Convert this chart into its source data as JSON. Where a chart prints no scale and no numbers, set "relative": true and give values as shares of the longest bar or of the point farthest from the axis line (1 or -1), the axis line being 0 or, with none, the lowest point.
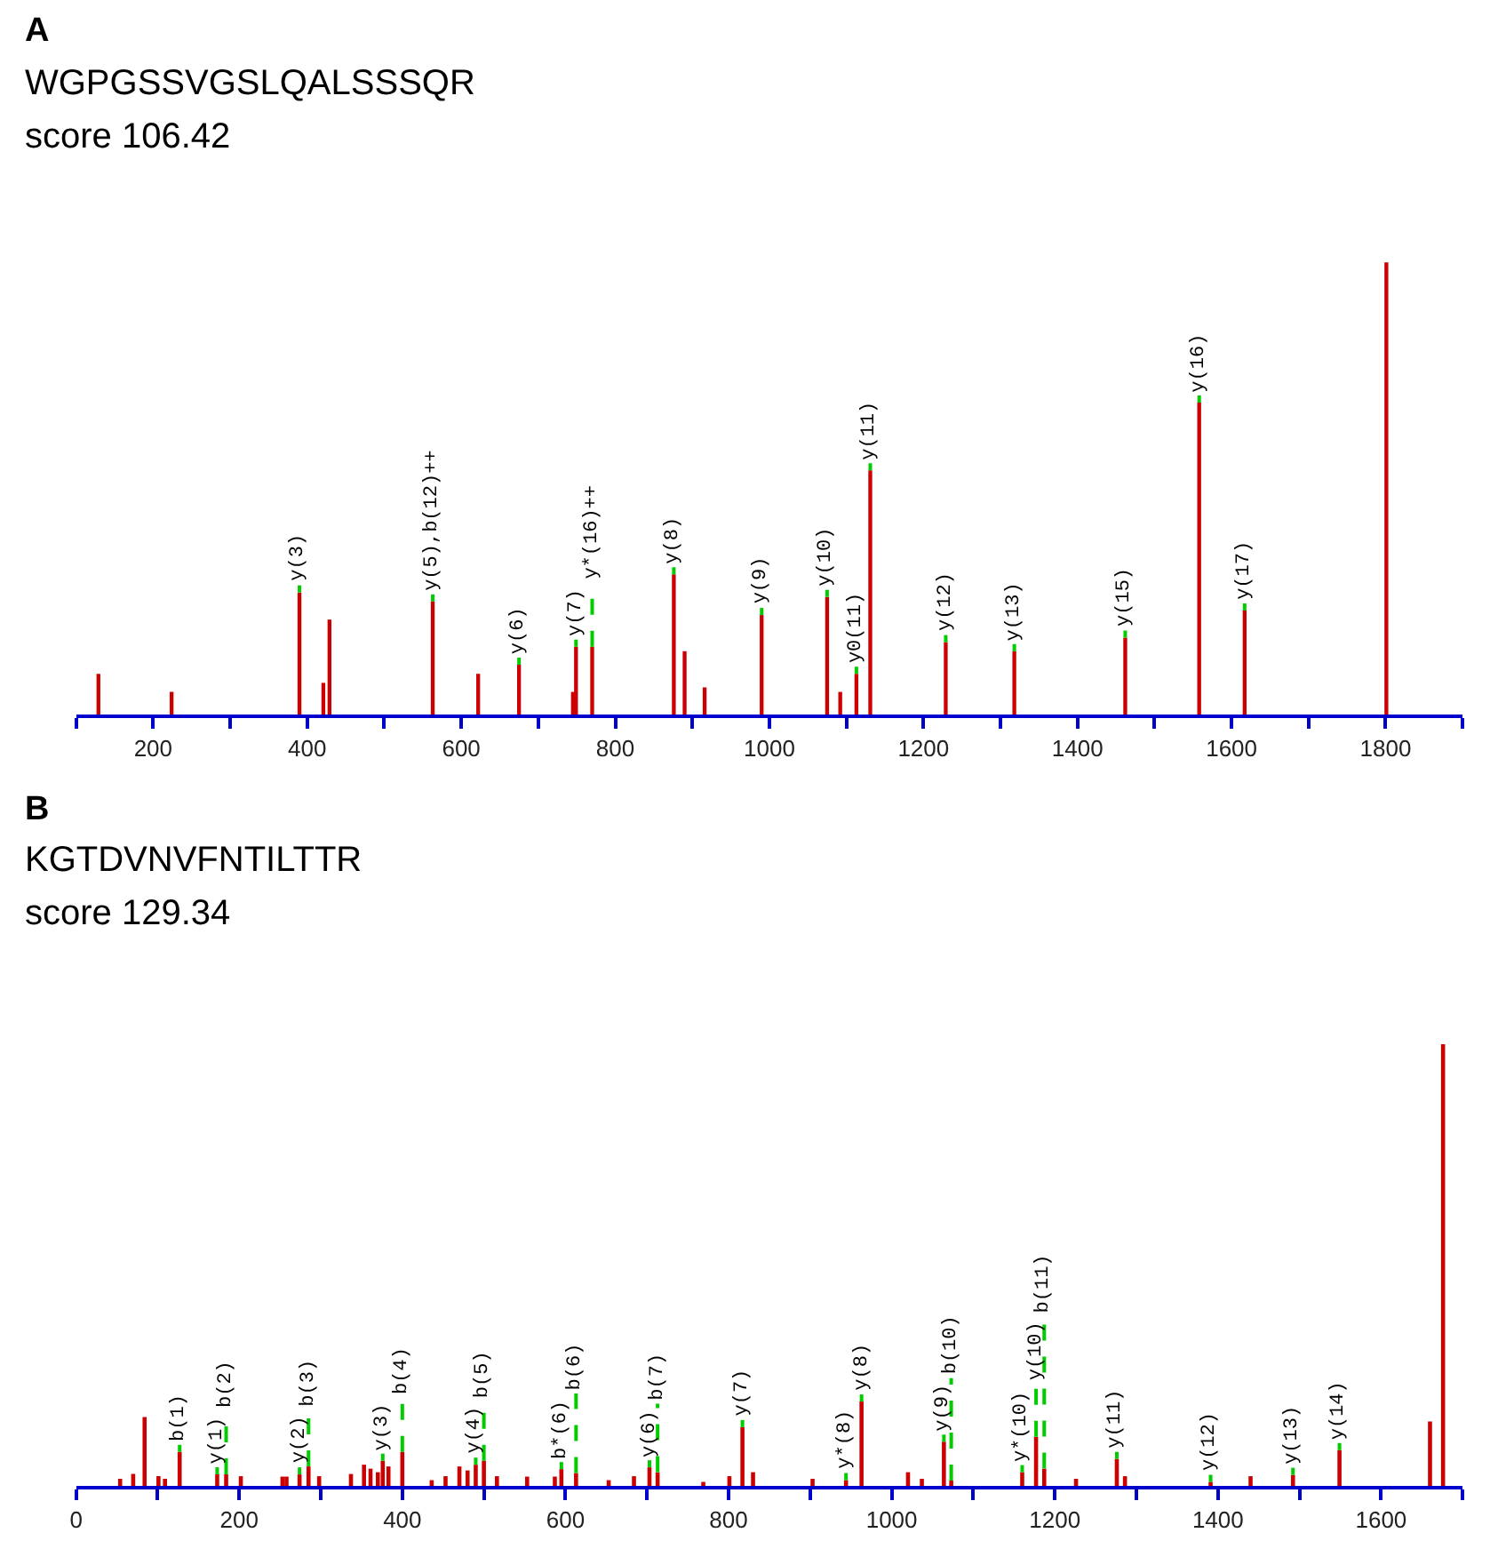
{
  "chart_data": [
    {
      "type": "bar",
      "title": "A",
      "subtitle": "WGPGSSVGSLQALSSSQR",
      "relative": true,
      "color": "#cc0000",
      "tick_labels": "x",
      "xlim": [
        100,
        1900
      ],
      "xticks": [
        {
          "value": 100,
          "label": null
        },
        200,
        {
          "value": 300,
          "label": null
        },
        400,
        {
          "value": 500,
          "label": null
        },
        600,
        {
          "value": 700,
          "label": null
        },
        800,
        {
          "value": 900,
          "label": null
        },
        1000,
        {
          "value": 1100,
          "label": null
        },
        1200,
        {
          "value": 1300,
          "label": null
        },
        1400,
        {
          "value": 1500,
          "label": null
        },
        1600,
        {
          "value": 1700,
          "label": null
        },
        1800,
        {
          "value": 1900,
          "label": null
        }
      ],
      "x": [
        129,
        224,
        390,
        421,
        429,
        563,
        622,
        675,
        745,
        749,
        770,
        876,
        890,
        916,
        990,
        1075,
        1092,
        1113,
        1131,
        1229,
        1318,
        1462,
        1558,
        1617,
        1801
      ],
      "values": [
        0.09,
        0.05,
        0.27,
        0.07,
        0.21,
        0.25,
        0.09,
        0.11,
        0.05,
        0.15,
        0.15,
        0.31,
        0.14,
        0.06,
        0.22,
        0.26,
        0.05,
        0.09,
        0.54,
        0.16,
        0.14,
        0.17,
        0.69,
        0.23,
        1.0
      ],
      "annotations": [
        "score 106.42",
        {
          "text": "y(3)",
          "x": 390,
          "y": 0.27
        },
        {
          "text": "y(5),b(12)++",
          "x": 563,
          "y": 0.25
        },
        {
          "text": "y(6)",
          "x": 675,
          "y": 0.11
        },
        {
          "text": "y(7)",
          "x": 749,
          "y": 0.15
        },
        {
          "text": "y*(16)++",
          "x": 770,
          "y": 0.15
        },
        {
          "text": "y(8)",
          "x": 876,
          "y": 0.31
        },
        {
          "text": "y(9)",
          "x": 990,
          "y": 0.22
        },
        {
          "text": "y(10)",
          "x": 1075,
          "y": 0.26
        },
        {
          "text": "y0(11)",
          "x": 1113,
          "y": 0.09
        },
        {
          "text": "y(11)",
          "x": 1131,
          "y": 0.54
        },
        {
          "text": "y(12)",
          "x": 1229,
          "y": 0.16
        },
        {
          "text": "y(13)",
          "x": 1318,
          "y": 0.14
        },
        {
          "text": "y(15)",
          "x": 1462,
          "y": 0.17
        },
        {
          "text": "y(16)",
          "x": 1558,
          "y": 0.69
        },
        {
          "text": "y(17)",
          "x": 1617,
          "y": 0.23
        }
      ]
    },
    {
      "type": "bar",
      "title": "B",
      "subtitle": "KGTDVNVFNTILTTR",
      "relative": true,
      "color": "#cc0000",
      "tick_labels": "x",
      "xlim": [
        0,
        1700
      ],
      "xticks": [
        0,
        {
          "value": 100,
          "label": null
        },
        200,
        {
          "value": 300,
          "label": null
        },
        400,
        {
          "value": 500,
          "label": null
        },
        600,
        {
          "value": 700,
          "label": null
        },
        800,
        {
          "value": 900,
          "label": null
        },
        1000,
        {
          "value": 1100,
          "label": null
        },
        1200,
        {
          "value": 1300,
          "label": null
        },
        1400,
        {
          "value": 1500,
          "label": null
        },
        1600,
        {
          "value": 1700,
          "label": null
        }
      ],
      "x": [
        54,
        70,
        84,
        101,
        109,
        127,
        173,
        184,
        202,
        253,
        258,
        274,
        285,
        298,
        337,
        353,
        361,
        370,
        376,
        383,
        400,
        436,
        453,
        470,
        480,
        490,
        500,
        516,
        553,
        587,
        595,
        613,
        653,
        684,
        703,
        713,
        769,
        801,
        817,
        830,
        903,
        944,
        963,
        1020,
        1037,
        1064,
        1073,
        1160,
        1177,
        1187,
        1226,
        1276,
        1286,
        1391,
        1440,
        1492,
        1549,
        1660,
        1676
      ],
      "values": [
        0.016,
        0.027,
        0.156,
        0.022,
        0.016,
        0.077,
        0.026,
        0.026,
        0.022,
        0.021,
        0.021,
        0.026,
        0.044,
        0.022,
        0.027,
        0.048,
        0.039,
        0.031,
        0.057,
        0.044,
        0.077,
        0.013,
        0.022,
        0.044,
        0.035,
        0.048,
        0.057,
        0.022,
        0.021,
        0.021,
        0.038,
        0.029,
        0.013,
        0.022,
        0.042,
        0.031,
        0.009,
        0.022,
        0.133,
        0.031,
        0.016,
        0.013,
        0.191,
        0.031,
        0.016,
        0.1,
        0.012,
        0.031,
        0.111,
        0.039,
        0.016,
        0.061,
        0.022,
        0.009,
        0.022,
        0.025,
        0.081,
        0.146,
        1.0
      ],
      "annotations": [
        "score 129.34",
        {
          "text": "b(1)",
          "x": 127,
          "y": 0.077
        },
        {
          "text": "y(1)",
          "x": 173,
          "y": 0.026
        },
        {
          "text": "b(2)",
          "x": 184,
          "y": 0.026
        },
        {
          "text": "y(2)",
          "x": 274,
          "y": 0.026
        },
        {
          "text": "b(3)",
          "x": 285,
          "y": 0.044
        },
        {
          "text": "y(3)",
          "x": 376,
          "y": 0.057
        },
        {
          "text": "b(4)",
          "x": 400,
          "y": 0.077
        },
        {
          "text": "y(4)",
          "x": 490,
          "y": 0.048
        },
        {
          "text": "b(5)",
          "x": 500,
          "y": 0.057
        },
        {
          "text": "b*(6)",
          "x": 595,
          "y": 0.038
        },
        {
          "text": "b(6)",
          "x": 613,
          "y": 0.029
        },
        {
          "text": "y(6)",
          "x": 703,
          "y": 0.042
        },
        {
          "text": "b(7)",
          "x": 713,
          "y": 0.031
        },
        {
          "text": "y(7)",
          "x": 817,
          "y": 0.133
        },
        {
          "text": "y*(8)",
          "x": 944,
          "y": 0.013
        },
        {
          "text": "y(8)",
          "x": 963,
          "y": 0.191
        },
        {
          "text": "y(9)",
          "x": 1064,
          "y": 0.1
        },
        {
          "text": "b(10)",
          "x": 1073,
          "y": 0.012
        },
        {
          "text": "y*(10)",
          "x": 1160,
          "y": 0.031
        },
        {
          "text": "y(10)",
          "x": 1177,
          "y": 0.111
        },
        {
          "text": "b(11)",
          "x": 1187,
          "y": 0.039
        },
        {
          "text": "y(11)",
          "x": 1276,
          "y": 0.061
        },
        {
          "text": "y(12)",
          "x": 1391,
          "y": 0.009
        },
        {
          "text": "y(13)",
          "x": 1492,
          "y": 0.025
        },
        {
          "text": "y(14)",
          "x": 1549,
          "y": 0.081
        }
      ]
    }
  ]
}
